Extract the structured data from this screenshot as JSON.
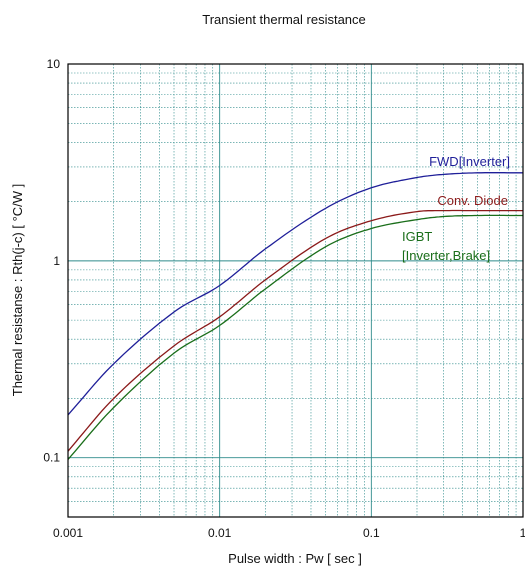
{
  "chart_data": {
    "type": "line",
    "title": "Transient thermal resistance",
    "xlabel": "Pulse width  :  Pw  [ sec ]",
    "ylabel": "Thermal resistanse  :  Rth(j-c)  [ °C/W ]",
    "x_scale": "log",
    "y_scale": "log",
    "xlim": [
      0.001,
      1
    ],
    "ylim": [
      0.05,
      10
    ],
    "x_ticks": [
      "0.001",
      "0.01",
      "0.1",
      "1"
    ],
    "y_ticks": [
      "0.1",
      "1",
      "10"
    ],
    "grid": true,
    "x": [
      0.001,
      0.002,
      0.005,
      0.01,
      0.02,
      0.05,
      0.1,
      0.2,
      0.3,
      0.5,
      1
    ],
    "series": [
      {
        "label": [
          "FWD[Inverter]"
        ],
        "color": "#1f1f99",
        "values": [
          0.165,
          0.3,
          0.55,
          0.75,
          1.15,
          1.85,
          2.35,
          2.65,
          2.75,
          2.8,
          2.8
        ]
      },
      {
        "label": [
          "Conv. Diode"
        ],
        "color": "#8b1a1a",
        "values": [
          0.108,
          0.2,
          0.37,
          0.52,
          0.8,
          1.3,
          1.6,
          1.78,
          1.8,
          1.8,
          1.8
        ]
      },
      {
        "label": [
          "IGBT",
          "[Inverter,Brake]"
        ],
        "color": "#1a6e1a",
        "values": [
          0.098,
          0.18,
          0.34,
          0.47,
          0.72,
          1.18,
          1.46,
          1.62,
          1.68,
          1.7,
          1.7
        ]
      }
    ]
  }
}
